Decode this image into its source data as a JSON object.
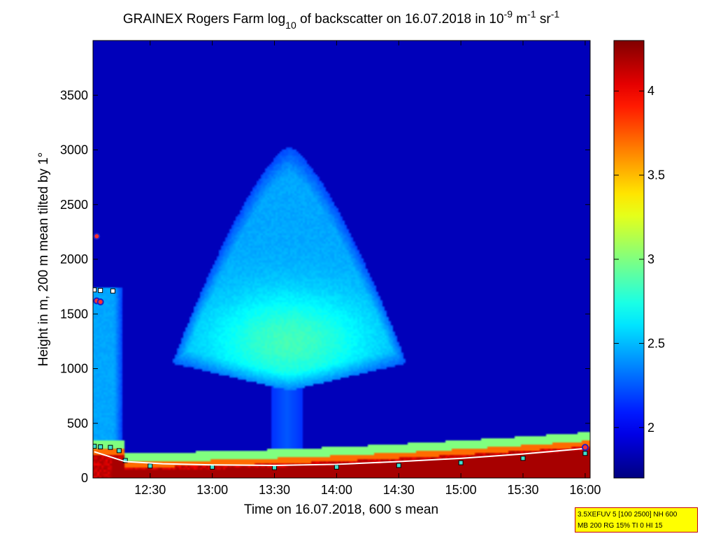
{
  "chart_data": {
    "type": "heatmap",
    "title": {
      "prefix": "GRAINEX Rogers Farm log",
      "sub": "10",
      "middle": " of backscatter on 16.07.2018 in 10",
      "sup1": "-9",
      "m": " m",
      "sup2": "-1",
      "sr": " sr",
      "sup3": "-1"
    },
    "xlabel": "Time on 16.07.2018, 600 s mean",
    "ylabel": "Height in m, 200 m mean tilted by 1°",
    "x_ticks": [
      {
        "label": "12:30",
        "hour": 12.5
      },
      {
        "label": "13:00",
        "hour": 13.0
      },
      {
        "label": "13:30",
        "hour": 13.5
      },
      {
        "label": "14:00",
        "hour": 14.0
      },
      {
        "label": "14:30",
        "hour": 14.5
      },
      {
        "label": "15:00",
        "hour": 15.0
      },
      {
        "label": "15:30",
        "hour": 15.5
      },
      {
        "label": "16:00",
        "hour": 16.0
      }
    ],
    "xlim_hours": [
      12.04,
      16.04
    ],
    "ylim": [
      0,
      4000
    ],
    "y_ticks": [
      0,
      500,
      1000,
      1500,
      2000,
      2500,
      3000,
      3500
    ],
    "colorbar": {
      "range": [
        1.7,
        4.3
      ],
      "ticks": [
        "2",
        "2.5",
        "3",
        "3.5",
        "4"
      ],
      "tick_values": [
        2.0,
        2.5,
        3.0,
        3.5,
        4.0
      ],
      "colormap": "jet"
    },
    "background_value": 1.85,
    "features": [
      {
        "name": "cloud",
        "hour_range": [
          12.45,
          14.75
        ],
        "height_range": [
          950,
          2950
        ],
        "peak_value": 2.85,
        "core_height": 1250
      },
      {
        "name": "early aerosol layer",
        "hour_range": [
          12.04,
          12.27
        ],
        "height_range": [
          180,
          1750
        ],
        "value": 2.4
      },
      {
        "name": "surface layer",
        "hour_range": [
          12.04,
          16.04
        ],
        "height_range": [
          0,
          380
        ],
        "value": 4.0
      }
    ],
    "marker_series": [
      {
        "marker": "square",
        "points": [
          [
            12.05,
            290
          ],
          [
            12.1,
            285
          ],
          [
            12.18,
            280
          ],
          [
            12.25,
            250
          ],
          [
            12.3,
            160
          ],
          [
            12.5,
            110
          ],
          [
            13.0,
            100
          ],
          [
            13.5,
            95
          ],
          [
            14.0,
            100
          ],
          [
            14.5,
            115
          ],
          [
            15.0,
            140
          ],
          [
            15.5,
            180
          ],
          [
            16.0,
            225
          ]
        ]
      },
      {
        "marker": "square",
        "points": [
          [
            12.05,
            1720
          ],
          [
            12.1,
            1715
          ],
          [
            12.2,
            1710
          ]
        ]
      },
      {
        "marker": "line",
        "points": [
          [
            12.05,
            240
          ],
          [
            12.3,
            150
          ],
          [
            12.6,
            130
          ],
          [
            13.0,
            120
          ],
          [
            13.5,
            115
          ],
          [
            14.0,
            125
          ],
          [
            14.5,
            150
          ],
          [
            15.0,
            180
          ],
          [
            15.5,
            220
          ],
          [
            16.0,
            270
          ]
        ]
      },
      {
        "marker": "circle",
        "points": [
          [
            12.07,
            1620
          ],
          [
            12.1,
            1610
          ]
        ]
      },
      {
        "marker": "circle",
        "points": [
          [
            12.07,
            2210
          ]
        ]
      },
      {
        "marker": "circle",
        "points": [
          [
            16.0,
            280
          ]
        ]
      }
    ]
  },
  "info_box": {
    "line1": "3.5XEFUV 5 [100 2500] NH 600",
    "line2": "MB 200 RG 15% TI 0 HI 15"
  }
}
